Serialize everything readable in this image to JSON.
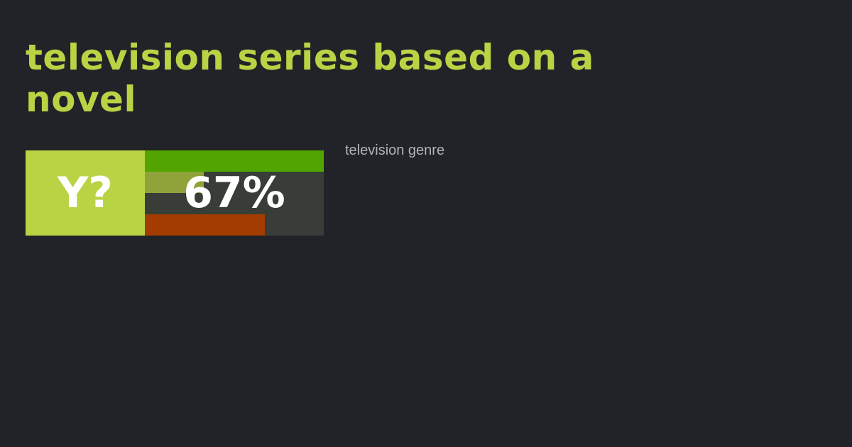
{
  "title": "television series based on a novel",
  "badge": "Y?",
  "score": {
    "value": 67,
    "label": "67%"
  },
  "bars": {
    "xlim": [
      0,
      100
    ],
    "items": [
      {
        "value": 100,
        "color": "#52a500"
      },
      {
        "value": 33,
        "color": "#8fa33a"
      },
      {
        "value": 67,
        "color": "#a33c00"
      }
    ]
  },
  "subtitle": "television genre"
}
